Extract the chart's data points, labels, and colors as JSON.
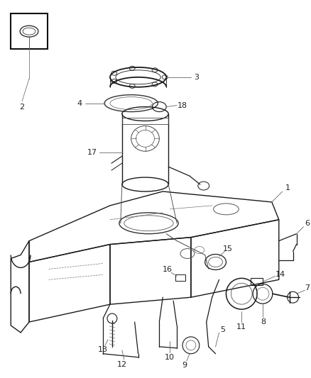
{
  "background_color": "#ffffff",
  "figsize": [
    4.38,
    5.33
  ],
  "dpi": 100,
  "image_data": ""
}
